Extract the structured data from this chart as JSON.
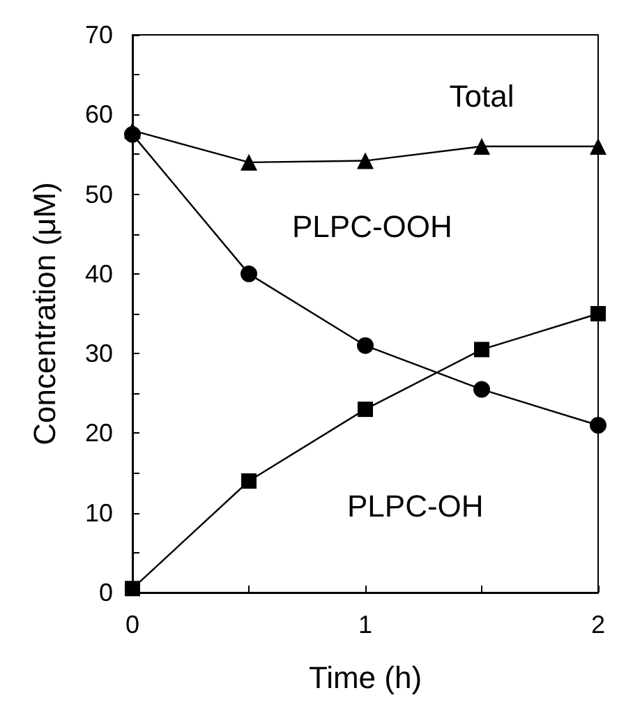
{
  "chart_data": {
    "type": "line",
    "xlabel": "Time (h)",
    "ylabel": "Concentration (μM)",
    "x": [
      0,
      0.5,
      1,
      1.5,
      2
    ],
    "series": [
      {
        "name": "Total",
        "color": "#000000",
        "marker": "triangle",
        "values": [
          58,
          54,
          54.2,
          56,
          56
        ]
      },
      {
        "name": "PLPC-OOH",
        "color": "#000000",
        "marker": "circle",
        "values": [
          57.5,
          40,
          31,
          25.5,
          21
        ]
      },
      {
        "name": "PLPC-OH",
        "color": "#000000",
        "marker": "square",
        "values": [
          0.5,
          14,
          23,
          30.5,
          35
        ]
      }
    ],
    "xlim": [
      0,
      2
    ],
    "xticks": [
      0,
      {
        "value": 0.5,
        "label": null
      },
      1,
      {
        "value": 1.5,
        "label": null
      },
      2
    ],
    "ylim": [
      0,
      70
    ],
    "yticks": [
      0,
      {
        "value": 5,
        "label": null
      },
      10,
      {
        "value": 15,
        "label": null
      },
      20,
      {
        "value": 25,
        "label": null
      },
      30,
      {
        "value": 35,
        "label": null
      },
      40,
      {
        "value": 45,
        "label": null
      },
      50,
      {
        "value": 55,
        "label": null
      },
      60,
      {
        "value": 65,
        "label": null
      },
      70
    ],
    "grid": false,
    "legend": false,
    "line_style": "solid"
  }
}
